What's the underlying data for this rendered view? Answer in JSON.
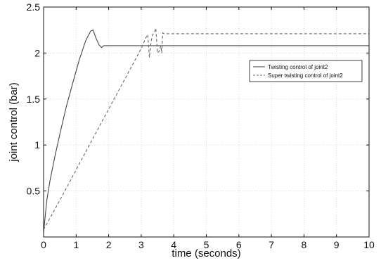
{
  "chart_data": {
    "type": "line",
    "title": "",
    "xlabel": "time (seconds)",
    "ylabel": "joint control (bar)",
    "xlim": [
      0,
      10
    ],
    "ylim": [
      0,
      2.5
    ],
    "x_ticks": [
      0,
      1,
      2,
      3,
      4,
      5,
      6,
      7,
      8,
      9,
      10
    ],
    "y_ticks": [
      0.5,
      1,
      1.5,
      2,
      2.5
    ],
    "x_tick_labels": [
      "0",
      "1",
      "2",
      "3",
      "4",
      "5",
      "6",
      "7",
      "8",
      "9",
      "10"
    ],
    "y_tick_labels": [
      "0.5",
      "1",
      "1.5",
      "2",
      "2.5"
    ],
    "grid": true,
    "legend_position": "right",
    "series": [
      {
        "name": "Twisting control of joint2",
        "style": "solid",
        "color": "#444444",
        "x": [
          0,
          0.1,
          0.2,
          0.35,
          0.5,
          0.7,
          0.9,
          1.1,
          1.3,
          1.45,
          1.52,
          1.6,
          1.7,
          1.78,
          1.85,
          2.0,
          3.0,
          5.0,
          7.0,
          10.0
        ],
        "y": [
          0.05,
          0.4,
          0.62,
          0.88,
          1.12,
          1.42,
          1.68,
          1.93,
          2.14,
          2.24,
          2.25,
          2.17,
          2.09,
          2.06,
          2.08,
          2.08,
          2.08,
          2.08,
          2.08,
          2.08
        ]
      },
      {
        "name": "Super twisting control of joint2",
        "style": "dashed",
        "color": "#666666",
        "x": [
          0,
          0.5,
          1.0,
          1.5,
          2.0,
          2.5,
          3.0,
          3.15,
          3.2,
          3.25,
          3.3,
          3.35,
          3.4,
          3.45,
          3.5,
          3.55,
          3.6,
          3.63,
          3.66,
          3.7,
          4.0,
          6.0,
          8.0,
          10.0
        ],
        "y": [
          0.08,
          0.4,
          0.73,
          1.06,
          1.39,
          1.72,
          2.05,
          2.17,
          2.2,
          1.95,
          2.12,
          2.2,
          2.22,
          2.27,
          2.0,
          2.02,
          2.08,
          2.0,
          2.22,
          2.21,
          2.21,
          2.21,
          2.21,
          2.21
        ]
      }
    ]
  }
}
